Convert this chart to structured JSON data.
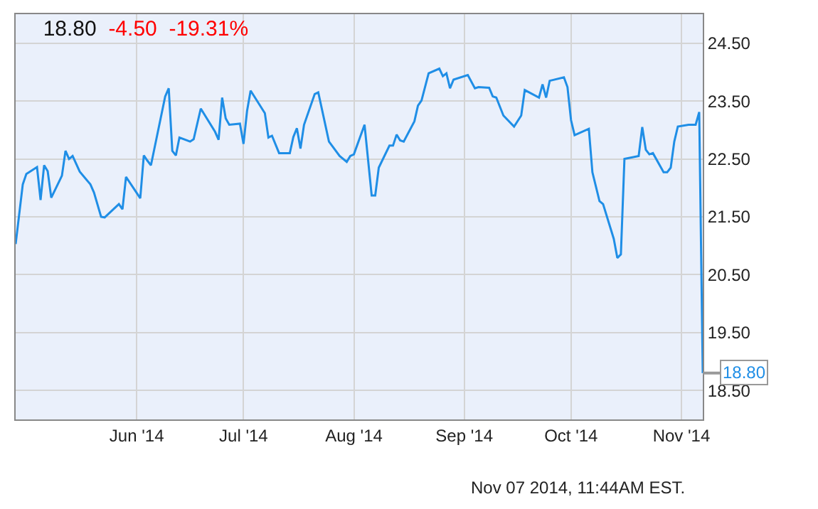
{
  "chart_data": {
    "type": "line",
    "title": "18.80",
    "subtitle": "-4.50  -19.31%",
    "x": [
      "2014-04-28",
      "2014-04-30",
      "2014-05-01",
      "2014-05-04",
      "2014-05-05",
      "2014-05-06",
      "2014-05-07",
      "2014-05-08",
      "2014-05-11",
      "2014-05-12",
      "2014-05-13",
      "2014-05-14",
      "2014-05-16",
      "2014-05-19",
      "2014-05-20",
      "2014-05-22",
      "2014-05-23",
      "2014-05-27",
      "2014-05-28",
      "2014-05-29",
      "2014-06-02",
      "2014-06-03",
      "2014-06-04",
      "2014-06-05",
      "2014-06-09",
      "2014-06-10",
      "2014-06-11",
      "2014-06-12",
      "2014-06-13",
      "2014-06-16",
      "2014-06-17",
      "2014-06-19",
      "2014-06-23",
      "2014-06-24",
      "2014-06-25",
      "2014-06-26",
      "2014-06-27",
      "2014-06-30",
      "2014-07-01",
      "2014-07-02",
      "2014-07-03",
      "2014-07-07",
      "2014-07-08",
      "2014-07-09",
      "2014-07-11",
      "2014-07-14",
      "2014-07-15",
      "2014-07-16",
      "2014-07-17",
      "2014-07-18",
      "2014-07-21",
      "2014-07-22",
      "2014-07-25",
      "2014-07-28",
      "2014-07-30",
      "2014-07-31",
      "2014-08-01",
      "2014-08-04",
      "2014-08-06",
      "2014-08-07",
      "2014-08-08",
      "2014-08-11",
      "2014-08-12",
      "2014-08-13",
      "2014-08-14",
      "2014-08-15",
      "2014-08-18",
      "2014-08-19",
      "2014-08-20",
      "2014-08-22",
      "2014-08-25",
      "2014-08-26",
      "2014-08-27",
      "2014-08-28",
      "2014-08-29",
      "2014-09-02",
      "2014-09-04",
      "2014-09-05",
      "2014-09-08",
      "2014-09-09",
      "2014-09-10",
      "2014-09-12",
      "2014-09-15",
      "2014-09-17",
      "2014-09-18",
      "2014-09-22",
      "2014-09-23",
      "2014-09-24",
      "2014-09-25",
      "2014-09-29",
      "2014-09-30",
      "2014-10-01",
      "2014-10-02",
      "2014-10-06",
      "2014-10-07",
      "2014-10-08",
      "2014-10-09",
      "2014-10-10",
      "2014-10-13",
      "2014-10-14",
      "2014-10-15",
      "2014-10-16",
      "2014-10-20",
      "2014-10-21",
      "2014-10-22",
      "2014-10-23",
      "2014-10-24",
      "2014-10-27",
      "2014-10-28",
      "2014-10-29",
      "2014-10-30",
      "2014-10-31",
      "2014-11-03",
      "2014-11-05",
      "2014-11-06",
      "2014-11-07"
    ],
    "series": [
      {
        "color": "#1f8ee6",
        "values": [
          21.03,
          22.06,
          22.24,
          22.36,
          21.79,
          22.39,
          22.29,
          21.83,
          22.21,
          22.64,
          22.5,
          22.55,
          22.28,
          22.06,
          21.92,
          21.5,
          21.49,
          21.72,
          21.63,
          22.19,
          21.82,
          22.56,
          22.47,
          22.39,
          23.58,
          23.72,
          22.64,
          22.56,
          22.87,
          22.8,
          22.84,
          23.37,
          22.97,
          22.83,
          23.56,
          23.2,
          23.09,
          23.11,
          22.76,
          23.33,
          23.68,
          23.29,
          22.87,
          22.9,
          22.6,
          22.6,
          22.88,
          23.03,
          22.68,
          23.09,
          23.62,
          23.65,
          22.8,
          22.55,
          22.45,
          22.55,
          22.58,
          23.09,
          21.87,
          21.87,
          22.35,
          22.73,
          22.73,
          22.92,
          22.82,
          22.8,
          23.15,
          23.42,
          23.51,
          23.98,
          24.06,
          23.93,
          23.98,
          23.72,
          23.87,
          23.95,
          23.72,
          23.74,
          23.73,
          23.58,
          23.56,
          23.25,
          23.06,
          23.25,
          23.69,
          23.56,
          23.79,
          23.56,
          23.85,
          23.91,
          23.74,
          23.17,
          22.91,
          23.02,
          22.27,
          22.02,
          21.77,
          21.72,
          21.12,
          20.79,
          20.85,
          22.5,
          22.55,
          23.05,
          22.66,
          22.58,
          22.6,
          22.27,
          22.27,
          22.35,
          22.8,
          23.06,
          23.09,
          23.09,
          23.31,
          18.8
        ]
      }
    ],
    "xlim": [
      "2014-04-28",
      "2014-11-07"
    ],
    "xticks": [
      {
        "value": "2014-06-01",
        "label": "Jun '14"
      },
      {
        "value": "2014-07-01",
        "label": "Jul '14"
      },
      {
        "value": "2014-08-01",
        "label": "Aug '14"
      },
      {
        "value": "2014-09-01",
        "label": "Sep '14"
      },
      {
        "value": "2014-10-01",
        "label": "Oct '14"
      },
      {
        "value": "2014-11-01",
        "label": "Nov '14"
      }
    ],
    "ylim": [
      18,
      25
    ],
    "yticks": [
      {
        "value": 18.5,
        "label": "18.50"
      },
      {
        "value": 19.5,
        "label": "19.50"
      },
      {
        "value": 20.5,
        "label": "20.50"
      },
      {
        "value": 21.5,
        "label": "21.50"
      },
      {
        "value": 22.5,
        "label": "22.50"
      },
      {
        "value": 23.5,
        "label": "23.50"
      },
      {
        "value": 24.5,
        "label": "24.50"
      }
    ],
    "grid": true,
    "line_style": "solid",
    "marker": "none",
    "annotations": [
      {
        "text": "18.80",
        "x": "2014-11-07",
        "y": 18.8
      },
      "Nov 07 2014, 11:44AM EST."
    ]
  }
}
